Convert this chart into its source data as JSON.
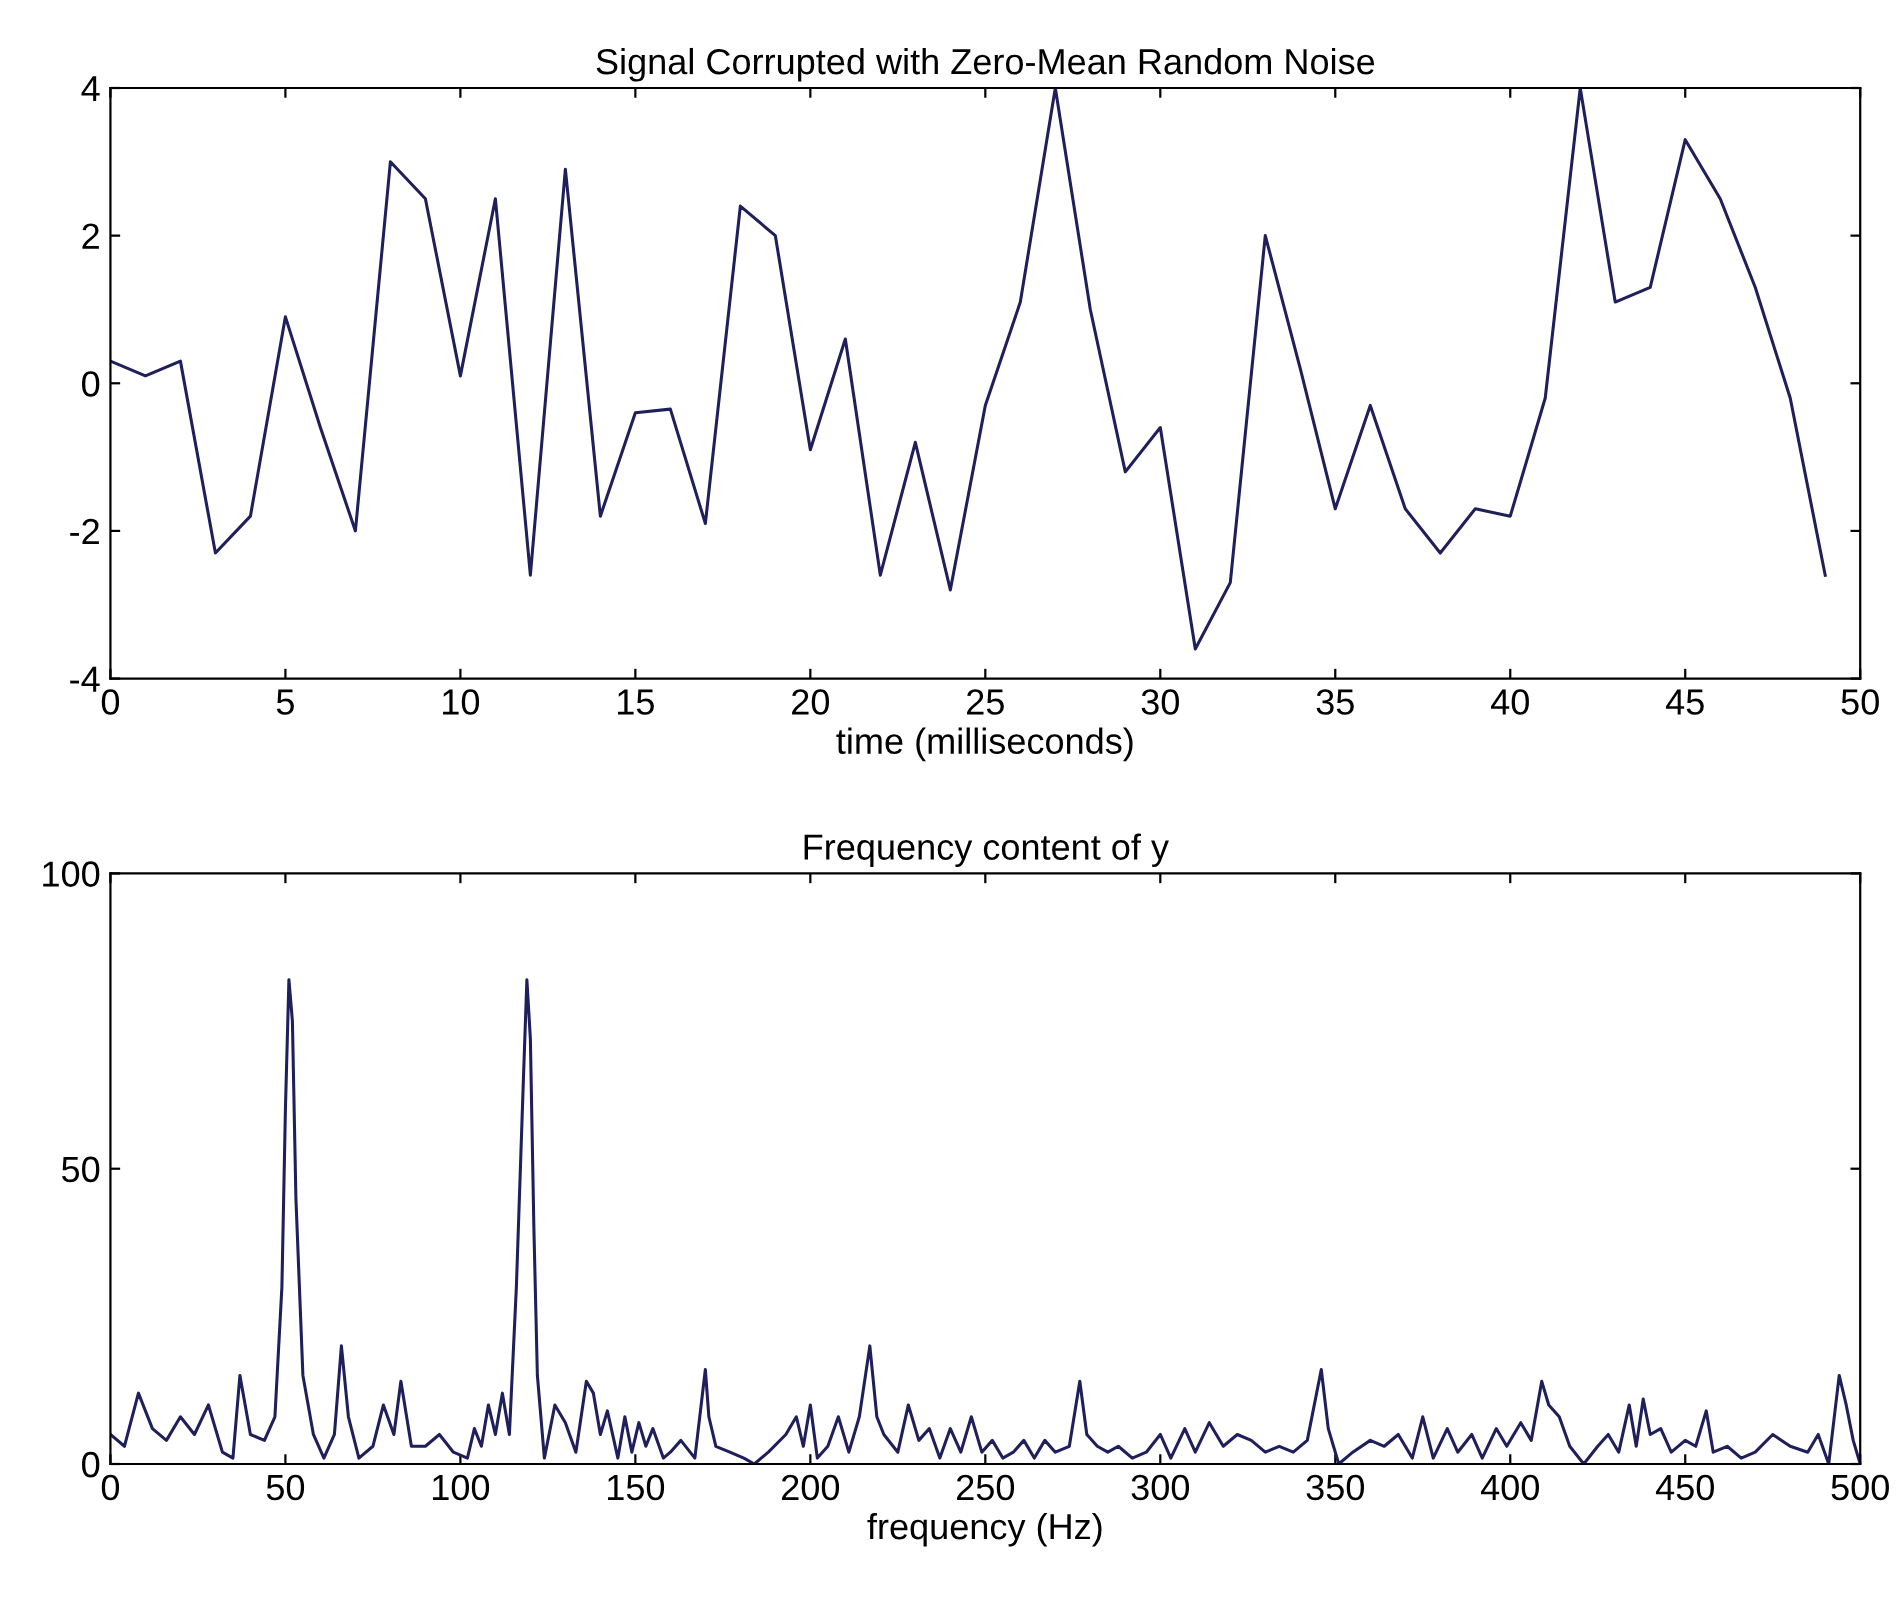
{
  "chart_data": [
    {
      "type": "line",
      "title": "Signal Corrupted with Zero-Mean Random Noise",
      "xlabel": "time (milliseconds)",
      "x": [
        0,
        1,
        2,
        3,
        4,
        5,
        6,
        7,
        8,
        9,
        10,
        11,
        12,
        13,
        14,
        15,
        16,
        17,
        18,
        19,
        20,
        21,
        22,
        23,
        24,
        25,
        26,
        27,
        28,
        29,
        30,
        31,
        32,
        33,
        34,
        35,
        36,
        37,
        38,
        39,
        40,
        41,
        42,
        43,
        44,
        45,
        46,
        47,
        48,
        49
      ],
      "series": [
        {
          "color": "#1f1f5c",
          "values": [
            0.3,
            0.1,
            0.3,
            -2.3,
            -1.8,
            0.9,
            -0.6,
            -2.0,
            3.0,
            2.5,
            0.1,
            2.5,
            -2.6,
            2.9,
            -1.8,
            -0.4,
            -0.35,
            -1.9,
            2.4,
            2.0,
            -0.9,
            0.6,
            -2.6,
            -0.8,
            -2.8,
            -0.3,
            1.1,
            4.0,
            1.0,
            -1.2,
            -0.6,
            -3.6,
            -2.7,
            2.0,
            0.2,
            -1.7,
            -0.3,
            -1.7,
            -2.3,
            -1.7,
            -1.8,
            -0.2,
            4.0,
            1.1,
            1.3,
            3.3,
            2.5,
            1.3,
            -0.2,
            -2.6
          ]
        }
      ],
      "xlim": [
        0,
        50
      ],
      "xticks": [
        0,
        5,
        10,
        15,
        20,
        25,
        30,
        35,
        40,
        45,
        50
      ],
      "ylim": [
        -4,
        4
      ],
      "yticks": [
        -4,
        -2,
        0,
        2,
        4
      ],
      "grid": false,
      "legend": false,
      "marker": "none",
      "line_style": "solid"
    },
    {
      "type": "line",
      "title": "Frequency content of y",
      "xlabel": "frequency (Hz)",
      "x": [
        0,
        4,
        8,
        12,
        16,
        20,
        24,
        28,
        32,
        35,
        37,
        40,
        44,
        47,
        49,
        50,
        51,
        52,
        53,
        55,
        58,
        61,
        64,
        66,
        68,
        71,
        75,
        78,
        81,
        83,
        86,
        90,
        94,
        98,
        102,
        104,
        106,
        108,
        110,
        112,
        114,
        116,
        118,
        119,
        120,
        121,
        122,
        124,
        127,
        130,
        133,
        136,
        138,
        140,
        142,
        145,
        147,
        149,
        151,
        153,
        155,
        158,
        160,
        163,
        167,
        170,
        171,
        173,
        177,
        181,
        184,
        188,
        193,
        196,
        198,
        200,
        202,
        205,
        208,
        211,
        214,
        217,
        219,
        221,
        225,
        228,
        231,
        234,
        237,
        240,
        243,
        246,
        249,
        252,
        255,
        258,
        261,
        264,
        267,
        270,
        274,
        277,
        279,
        282,
        285,
        288,
        292,
        296,
        300,
        303,
        307,
        310,
        314,
        318,
        322,
        326,
        330,
        334,
        338,
        342,
        346,
        348,
        351,
        355,
        360,
        364,
        368,
        372,
        375,
        378,
        382,
        385,
        389,
        392,
        396,
        399,
        403,
        406,
        409,
        411,
        414,
        417,
        421,
        425,
        428,
        431,
        434,
        436,
        438,
        440,
        443,
        446,
        450,
        453,
        456,
        458,
        462,
        466,
        470,
        475,
        480,
        485,
        488,
        491,
        494,
        496,
        498,
        500
      ],
      "series": [
        {
          "color": "#1f1f5c",
          "values": [
            5,
            3,
            12,
            6,
            4,
            8,
            5,
            10,
            2,
            1,
            15,
            5,
            4,
            8,
            30,
            60,
            82,
            75,
            45,
            15,
            5,
            1,
            5,
            20,
            8,
            1,
            3,
            10,
            5,
            14,
            3,
            3,
            5,
            2,
            1,
            6,
            3,
            10,
            5,
            12,
            5,
            30,
            65,
            82,
            72,
            40,
            15,
            1,
            10,
            7,
            2,
            14,
            12,
            5,
            9,
            1,
            8,
            2,
            7,
            3,
            6,
            1,
            2,
            4,
            1,
            16,
            8,
            3,
            2,
            1,
            0,
            2,
            5,
            8,
            3,
            10,
            1,
            3,
            8,
            2,
            8,
            20,
            8,
            5,
            2,
            10,
            4,
            6,
            1,
            6,
            2,
            8,
            2,
            4,
            1,
            2,
            4,
            1,
            4,
            2,
            3,
            14,
            5,
            3,
            2,
            3,
            1,
            2,
            5,
            1,
            6,
            2,
            7,
            3,
            5,
            4,
            2,
            3,
            2,
            4,
            16,
            6,
            0,
            2,
            4,
            3,
            5,
            1,
            8,
            1,
            6,
            2,
            5,
            1,
            6,
            3,
            7,
            4,
            14,
            10,
            8,
            3,
            0,
            3,
            5,
            2,
            10,
            3,
            11,
            5,
            6,
            2,
            4,
            3,
            9,
            2,
            3,
            1,
            2,
            5,
            3,
            2,
            5,
            0,
            15,
            10,
            4,
            0
          ]
        }
      ],
      "xlim": [
        0,
        500
      ],
      "xticks": [
        0,
        50,
        100,
        150,
        200,
        250,
        300,
        350,
        400,
        450,
        500
      ],
      "ylim": [
        0,
        100
      ],
      "yticks": [
        0,
        50,
        100
      ],
      "grid": false,
      "legend": false,
      "marker": "none",
      "line_style": "solid"
    }
  ]
}
